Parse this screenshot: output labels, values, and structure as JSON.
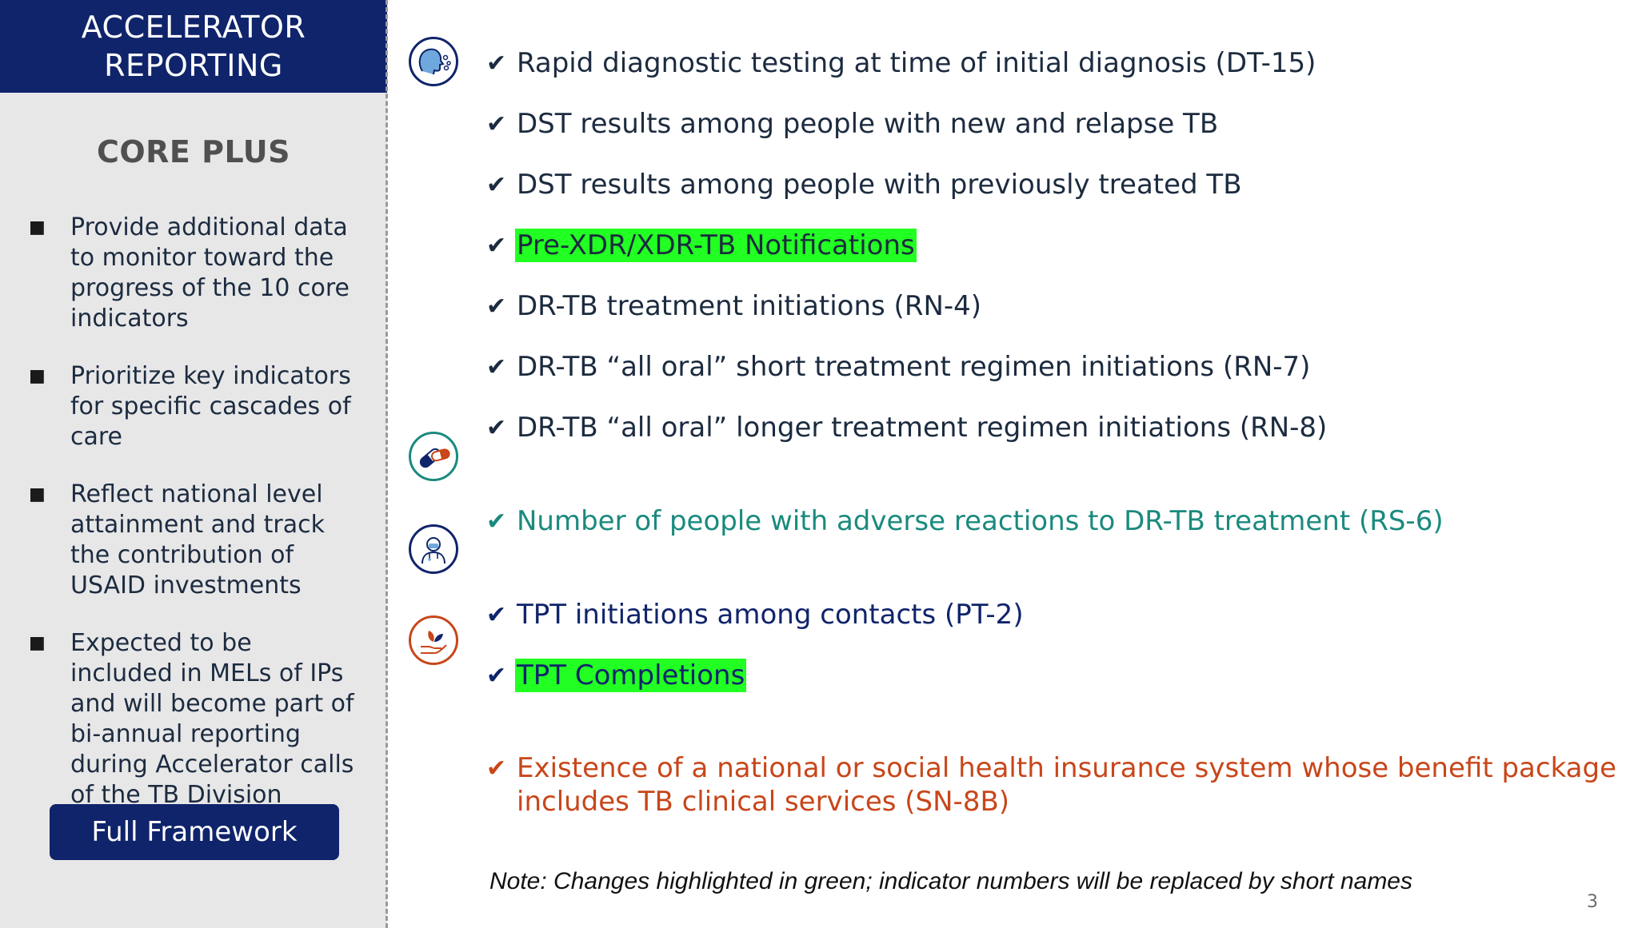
{
  "sidebar": {
    "header_line1": "ACCELERATOR",
    "header_line2": "REPORTING",
    "section_title": "CORE PLUS",
    "bullet_symbol": "■",
    "bullets": [
      "Provide additional data to monitor toward the progress of the 10 core indicators",
      "Prioritize key indicators for specific cascades of care",
      "Reflect national level attainment and track the contribution of USAID investments",
      "Expected to be included in MELs of IPs and will become part of bi-annual reporting during Accelerator calls of the TB Division"
    ],
    "button_label": "Full Framework"
  },
  "icons": [
    {
      "name": "person-coughing-icon",
      "color": "#10246b"
    },
    {
      "name": "pill-capsules-icon",
      "color": "#1a8a7e"
    },
    {
      "name": "health-worker-icon",
      "color": "#10246b"
    },
    {
      "name": "hand-with-leaves-icon",
      "color": "#c8461a"
    }
  ],
  "check_symbol": "✔",
  "colors": {
    "navy": "#10246b",
    "teal": "#1a8a7e",
    "orange": "#c8461a",
    "highlight": "#22ff22",
    "dark_text": "#1c2b3f"
  },
  "indicators": [
    {
      "text": "Rapid diagnostic testing at time of initial diagnosis (DT-15)",
      "color": "#1c2b3f",
      "highlighted": false
    },
    {
      "text": "DST results among people with new and relapse TB",
      "color": "#1c2b3f",
      "highlighted": false
    },
    {
      "text": "DST results among people with previously treated TB",
      "color": "#1c2b3f",
      "highlighted": false
    },
    {
      "text": "Pre-XDR/XDR-TB Notifications",
      "color": "#1c2b3f",
      "highlighted": true
    },
    {
      "text": "DR-TB treatment initiations (RN-4)",
      "color": "#1c2b3f",
      "highlighted": false
    },
    {
      "text": "DR-TB “all oral” short treatment regimen initiations (RN-7)",
      "color": "#1c2b3f",
      "highlighted": false
    },
    {
      "text": "DR-TB “all oral” longer treatment regimen initiations (RN-8)",
      "color": "#1c2b3f",
      "highlighted": false
    },
    {
      "text": "Number of people with adverse reactions to DR-TB treatment (RS-6)",
      "color": "#1a8a7e",
      "highlighted": false
    },
    {
      "text": "TPT initiations among contacts (PT-2)",
      "color": "#10246b",
      "highlighted": false
    },
    {
      "text": "TPT Completions",
      "color": "#10246b",
      "highlighted": true
    },
    {
      "text": "Existence of a national or social health insurance system whose benefit package",
      "text_line2": "includes TB clinical services (SN-8B)",
      "color": "#c8461a",
      "highlighted": false
    }
  ],
  "note": "Note: Changes highlighted in green; indicator numbers will be replaced by short names",
  "page_number": "3"
}
